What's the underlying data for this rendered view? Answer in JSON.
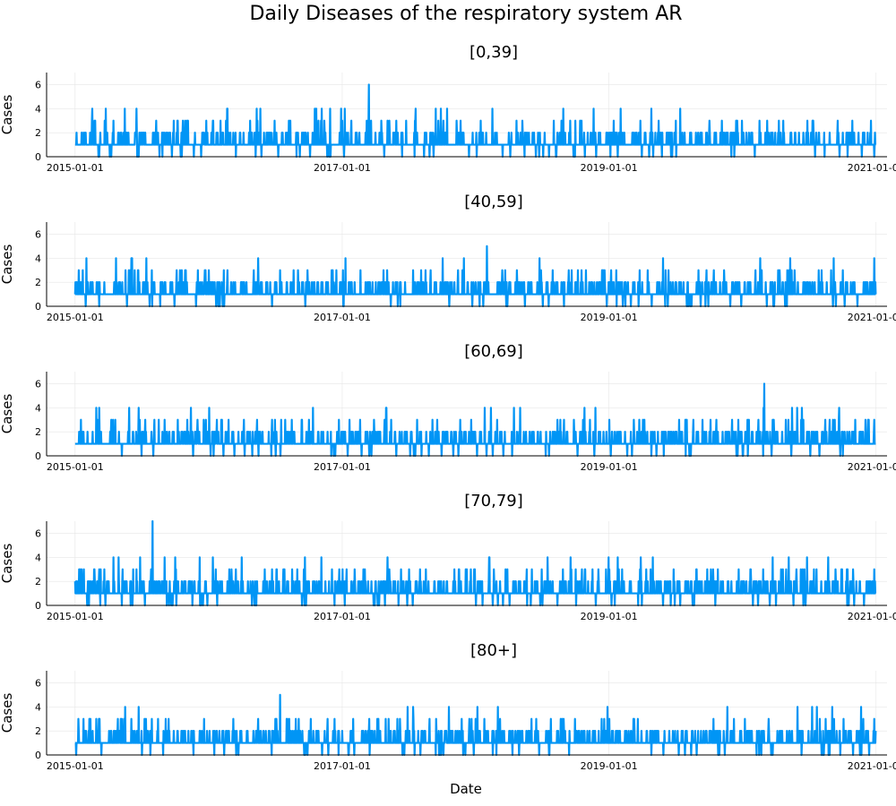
{
  "figure_title": "Daily Diseases of the respiratory system AR",
  "chart_data": {
    "type": "line",
    "title": "Daily Diseases of the respiratory system AR",
    "xlabel": "Date",
    "ylabel": "Cases",
    "x_range": [
      "2014-10-15",
      "2021-01-31"
    ],
    "series_x_range": [
      "2015-01-01",
      "2020-12-31"
    ],
    "ylim": [
      0,
      7
    ],
    "x_ticks": [
      "2015-01-01",
      "2017-01-01",
      "2019-01-01",
      "2021-01-01"
    ],
    "y_ticks": [
      0,
      2,
      4,
      6
    ],
    "grid": true,
    "legend": "none",
    "color": "#0095f5",
    "panels": [
      {
        "title": "[0,39]",
        "series_name": "[0,39]",
        "peak_date": "2017-03-15",
        "peak_value": 6
      },
      {
        "title": "[40,59]",
        "series_name": "[40,59]",
        "peak_date": "2018-02-01",
        "peak_value": 5
      },
      {
        "title": "[60,69]",
        "series_name": "[60,69]",
        "peak_date": "2020-03-01",
        "peak_value": 6
      },
      {
        "title": "[70,79]",
        "series_name": "[70,79]",
        "peak_date": "2015-08-01",
        "peak_value": 7
      },
      {
        "title": "[80+]",
        "series_name": "[80+]",
        "peak_date": "2016-07-15",
        "peak_value": 5
      }
    ]
  }
}
